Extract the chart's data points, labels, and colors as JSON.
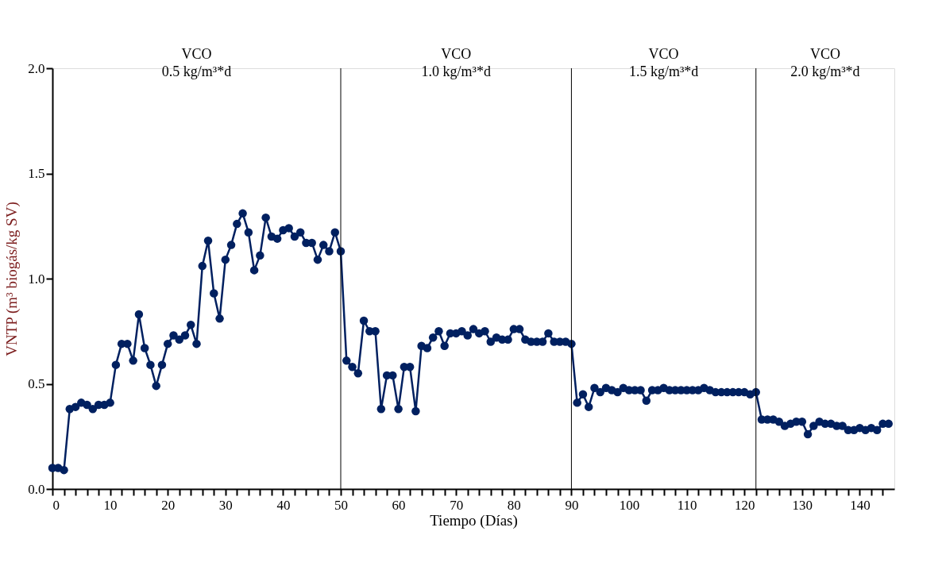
{
  "chart_data": {
    "type": "line",
    "xlabel": "Tiempo (Días)",
    "ylabel": "VNTP (m³ biogás/kg SV)",
    "annotations": [
      "VCO\n0.5 kg/m³*d",
      "VCO\n1.0 kg/m³*d",
      "VCO\n1.5 kg/m³*d",
      "VCO\n2.0 kg/m³*d"
    ],
    "x": [
      0,
      1,
      2,
      3,
      4,
      5,
      6,
      7,
      8,
      9,
      10,
      11,
      12,
      13,
      14,
      15,
      16,
      17,
      18,
      19,
      20,
      21,
      22,
      23,
      24,
      25,
      26,
      27,
      28,
      29,
      30,
      31,
      32,
      33,
      34,
      35,
      36,
      37,
      38,
      39,
      40,
      41,
      42,
      43,
      44,
      45,
      46,
      47,
      48,
      49,
      50,
      51,
      52,
      53,
      54,
      55,
      56,
      57,
      58,
      59,
      60,
      61,
      62,
      63,
      64,
      65,
      66,
      67,
      68,
      69,
      70,
      71,
      72,
      73,
      74,
      75,
      76,
      77,
      78,
      79,
      80,
      81,
      82,
      83,
      84,
      85,
      86,
      87,
      88,
      89,
      90,
      91,
      92,
      93,
      94,
      95,
      96,
      97,
      98,
      99,
      100,
      101,
      102,
      103,
      104,
      105,
      106,
      107,
      108,
      109,
      110,
      111,
      112,
      113,
      114,
      115,
      116,
      117,
      118,
      119,
      120,
      121,
      122,
      123,
      124,
      125,
      126,
      127,
      128,
      129,
      130,
      131,
      132,
      133,
      134,
      135,
      136,
      137,
      138,
      139,
      140,
      141,
      142,
      143,
      144,
      145
    ],
    "series": [
      {
        "color": "#002060",
        "values": [
          0.1,
          0.1,
          0.09,
          0.38,
          0.39,
          0.41,
          0.4,
          0.38,
          0.4,
          0.4,
          0.41,
          0.59,
          0.69,
          0.69,
          0.61,
          0.83,
          0.67,
          0.59,
          0.49,
          0.59,
          0.69,
          0.73,
          0.71,
          0.73,
          0.78,
          0.69,
          1.06,
          1.18,
          0.93,
          0.81,
          1.09,
          1.16,
          1.26,
          1.31,
          1.22,
          1.04,
          1.11,
          1.29,
          1.2,
          1.19,
          1.23,
          1.24,
          1.2,
          1.22,
          1.17,
          1.17,
          1.09,
          1.16,
          1.13,
          1.22,
          1.13,
          0.61,
          0.58,
          0.55,
          0.8,
          0.75,
          0.75,
          0.38,
          0.54,
          0.54,
          0.38,
          0.58,
          0.58,
          0.37,
          0.68,
          0.67,
          0.72,
          0.75,
          0.68,
          0.74,
          0.74,
          0.75,
          0.73,
          0.76,
          0.74,
          0.75,
          0.7,
          0.72,
          0.71,
          0.71,
          0.76,
          0.76,
          0.71,
          0.7,
          0.7,
          0.7,
          0.74,
          0.7,
          0.7,
          0.7,
          0.69,
          0.41,
          0.45,
          0.39,
          0.48,
          0.46,
          0.48,
          0.47,
          0.46,
          0.48,
          0.47,
          0.47,
          0.47,
          0.42,
          0.47,
          0.47,
          0.48,
          0.47,
          0.47,
          0.47,
          0.47,
          0.47,
          0.47,
          0.48,
          0.47,
          0.46,
          0.46,
          0.46,
          0.46,
          0.46,
          0.46,
          0.45,
          0.46,
          0.33,
          0.33,
          0.33,
          0.32,
          0.3,
          0.31,
          0.32,
          0.32,
          0.26,
          0.3,
          0.32,
          0.31,
          0.31,
          0.3,
          0.3,
          0.28,
          0.28,
          0.29,
          0.28,
          0.29,
          0.28,
          0.31,
          0.31
        ]
      }
    ],
    "xlim": [
      0,
      146
    ],
    "xticks": [
      0,
      {
        "value": 2,
        "label": null
      },
      {
        "value": 4,
        "label": null
      },
      {
        "value": 6,
        "label": null
      },
      {
        "value": 8,
        "label": null
      },
      10,
      {
        "value": 12,
        "label": null
      },
      {
        "value": 14,
        "label": null
      },
      {
        "value": 16,
        "label": null
      },
      {
        "value": 18,
        "label": null
      },
      20,
      {
        "value": 22,
        "label": null
      },
      {
        "value": 24,
        "label": null
      },
      {
        "value": 26,
        "label": null
      },
      {
        "value": 28,
        "label": null
      },
      30,
      {
        "value": 32,
        "label": null
      },
      {
        "value": 34,
        "label": null
      },
      {
        "value": 36,
        "label": null
      },
      {
        "value": 38,
        "label": null
      },
      40,
      {
        "value": 42,
        "label": null
      },
      {
        "value": 44,
        "label": null
      },
      {
        "value": 46,
        "label": null
      },
      {
        "value": 48,
        "label": null
      },
      50,
      {
        "value": 52,
        "label": null
      },
      {
        "value": 54,
        "label": null
      },
      {
        "value": 56,
        "label": null
      },
      {
        "value": 58,
        "label": null
      },
      60,
      {
        "value": 62,
        "label": null
      },
      {
        "value": 64,
        "label": null
      },
      {
        "value": 66,
        "label": null
      },
      {
        "value": 68,
        "label": null
      },
      70,
      {
        "value": 72,
        "label": null
      },
      {
        "value": 74,
        "label": null
      },
      {
        "value": 76,
        "label": null
      },
      {
        "value": 78,
        "label": null
      },
      80,
      {
        "value": 82,
        "label": null
      },
      {
        "value": 84,
        "label": null
      },
      {
        "value": 86,
        "label": null
      },
      {
        "value": 88,
        "label": null
      },
      90,
      {
        "value": 92,
        "label": null
      },
      {
        "value": 94,
        "label": null
      },
      {
        "value": 96,
        "label": null
      },
      {
        "value": 98,
        "label": null
      },
      100,
      {
        "value": 102,
        "label": null
      },
      {
        "value": 104,
        "label": null
      },
      {
        "value": 106,
        "label": null
      },
      {
        "value": 108,
        "label": null
      },
      110,
      {
        "value": 112,
        "label": null
      },
      {
        "value": 114,
        "label": null
      },
      {
        "value": 116,
        "label": null
      },
      {
        "value": 118,
        "label": null
      },
      120,
      {
        "value": 122,
        "label": null
      },
      {
        "value": 124,
        "label": null
      },
      {
        "value": 126,
        "label": null
      },
      {
        "value": 128,
        "label": null
      },
      130,
      {
        "value": 132,
        "label": null
      },
      {
        "value": 134,
        "label": null
      },
      {
        "value": 136,
        "label": null
      },
      {
        "value": 138,
        "label": null
      },
      140,
      {
        "value": 142,
        "label": null
      },
      {
        "value": 144,
        "label": null
      }
    ],
    "ylim": [
      0,
      2
    ],
    "yticks": [
      {
        "value": 0,
        "label": "0.0"
      },
      {
        "value": 0.5,
        "label": "0.5"
      },
      {
        "value": 1,
        "label": "1.0"
      },
      {
        "value": 1.5,
        "label": "1.5"
      },
      {
        "value": 2,
        "label": "2.0"
      }
    ],
    "ref_lines": [
      {
        "axis": "x",
        "value": 50,
        "color": "#000000"
      },
      {
        "axis": "x",
        "value": 90,
        "color": "#000000"
      },
      {
        "axis": "x",
        "value": 122,
        "color": "#000000"
      }
    ],
    "grid": false,
    "marker": "circle",
    "line_style": "solid"
  }
}
